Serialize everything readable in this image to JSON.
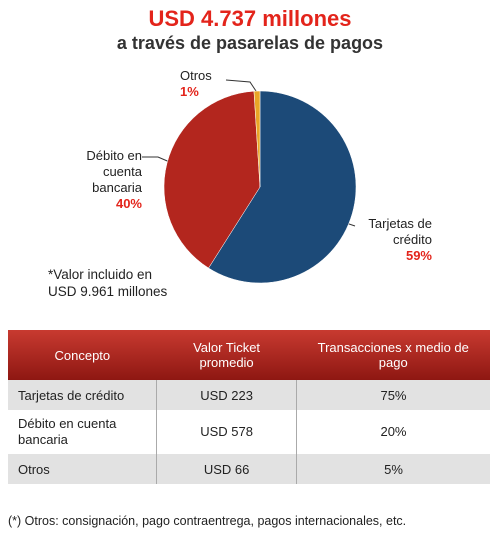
{
  "chart_data": {
    "type": "pie",
    "title": "USD 4.737 millones",
    "subtitle": "a través de pasarelas de pagos",
    "categories": [
      "Tarjetas de crédito",
      "Débito en cuenta bancaria",
      "Otros"
    ],
    "values": [
      59,
      40,
      1
    ],
    "value_labels": [
      "59%",
      "40%",
      "1%"
    ],
    "colors": [
      "#1c4a78",
      "#b3261e",
      "#e9a526"
    ],
    "annotation": "*Valor incluido en USD 9.961 millones"
  },
  "table": {
    "header": [
      "Concepto",
      "Valor Ticket promedio",
      "Transacciones x medio de pago"
    ],
    "rows": [
      [
        "Tarjetas de crédito",
        "USD 223",
        "75%"
      ],
      [
        "Débito en cuenta bancaria",
        "USD 578",
        "20%"
      ],
      [
        "Otros",
        "USD 66",
        "5%"
      ]
    ]
  },
  "footnote": "(*) Otros: consignación, pago contraentrega, pagos internacionales, etc."
}
